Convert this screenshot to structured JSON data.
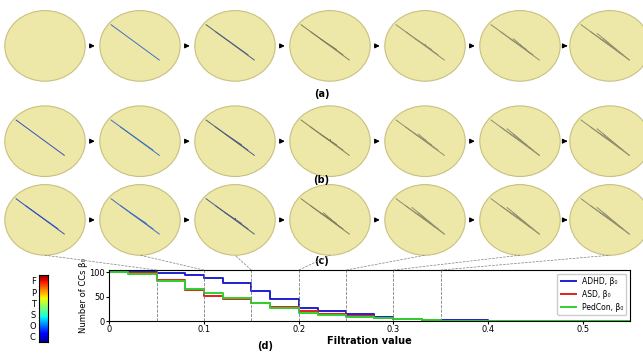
{
  "chart_data": {
    "type": "line",
    "x_label": "Filtration value",
    "y_label": "Number of CCs β₀",
    "panel_labels": [
      "(a)",
      "(b)",
      "(c)"
    ],
    "chart_label": "(d)",
    "colorbar_labels": [
      "F",
      "P",
      "T",
      "S",
      "O",
      "C"
    ],
    "filtration_marks": [
      0.05,
      0.1,
      0.15,
      0.2,
      0.25,
      0.3,
      0.35
    ],
    "x": [
      0,
      0.02,
      0.05,
      0.08,
      0.1,
      0.12,
      0.15,
      0.17,
      0.2,
      0.22,
      0.25,
      0.28,
      0.3,
      0.33,
      0.35,
      0.4,
      0.45,
      0.55
    ],
    "series": [
      {
        "name": "ADHD, β₀",
        "color": "#1f1fd0",
        "values": [
          100,
          100,
          98,
          95,
          88,
          78,
          62,
          45,
          28,
          20,
          14,
          8,
          5,
          3,
          2,
          1,
          1,
          1
        ]
      },
      {
        "name": "ASD, β₀",
        "color": "#e02020",
        "values": [
          100,
          98,
          85,
          65,
          52,
          46,
          38,
          30,
          22,
          15,
          10,
          7,
          5,
          2,
          1,
          1,
          1,
          1
        ]
      },
      {
        "name": "PedCon, β₀",
        "color": "#30d030",
        "values": [
          100,
          97,
          82,
          66,
          58,
          48,
          38,
          28,
          17,
          12,
          8,
          6,
          4,
          2,
          1,
          1,
          1,
          1
        ]
      }
    ],
    "xlim": [
      0,
      0.55
    ],
    "ylim": [
      0,
      105
    ],
    "xticks": [
      0,
      0.1,
      0.2,
      0.3,
      0.4,
      0.5
    ],
    "yticks": [
      0,
      50,
      100
    ],
    "legend": "upper right",
    "grid": false
  }
}
